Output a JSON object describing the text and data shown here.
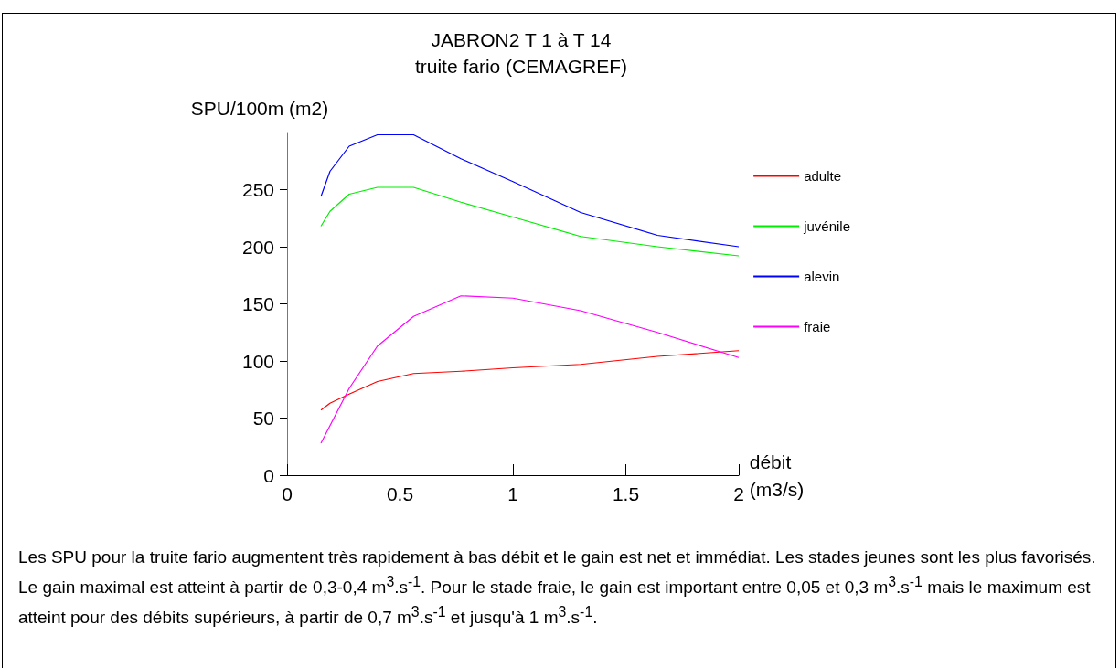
{
  "chart_data": {
    "type": "line",
    "title": "JABRON2 T 1 à T 14",
    "subtitle": "truite fario (CEMAGREF)",
    "ylabel": "SPU/100m (m2)",
    "xlabel": "débit\n(m3/s)",
    "x": [
      0.15,
      0.19,
      0.275,
      0.4,
      0.56,
      0.77,
      1.0,
      1.3,
      1.64,
      2.0
    ],
    "series": [
      {
        "name": "adulte",
        "color": "#ff0000",
        "values": [
          57,
          63,
          71,
          82,
          89,
          91,
          94,
          97,
          104,
          109
        ]
      },
      {
        "name": "juvénile",
        "color": "#00ee00",
        "values": [
          218,
          231,
          246,
          252,
          252,
          239,
          226,
          209,
          200,
          192
        ]
      },
      {
        "name": "alevin",
        "color": "#0000ff",
        "values": [
          244,
          266,
          288,
          298,
          298,
          277,
          257,
          230,
          210,
          200
        ]
      },
      {
        "name": "fraie",
        "color": "#ff00ff",
        "x": [
          0.15,
          0.275,
          0.4,
          0.56,
          0.77,
          1.0,
          1.3,
          1.64,
          2.0
        ],
        "values": [
          28,
          76,
          113,
          139,
          157,
          155,
          144,
          125,
          103
        ]
      }
    ],
    "xlim": [
      0,
      2
    ],
    "xticks": [
      0,
      0.5,
      1,
      1.5,
      2
    ],
    "ylim": [
      0,
      300
    ],
    "yticks": [
      0,
      50,
      100,
      150,
      200,
      250
    ],
    "grid": false,
    "legend": "right",
    "marker": "none",
    "line_style": "solid",
    "annotations": [
      "Les SPU pour la truite fario augmentent très rapidement à bas débit et le gain est net et immédiat. Les stades jeunes sont les plus favorisés. Le gain maximal est atteint à partir de 0,3-0,4 m$^{3}$.s$^{-1}$. Pour le stade fraie, le gain est important entre 0,05 et 0,3 m$^{3}$.s$^{-1}$ mais le maximum est atteint pour des débits supérieurs, à partir de 0,7 m$^{3}$.s$^{-1}$ et jusqu'à 1 m$^{3}$.s$^{-1}$."
    ]
  }
}
